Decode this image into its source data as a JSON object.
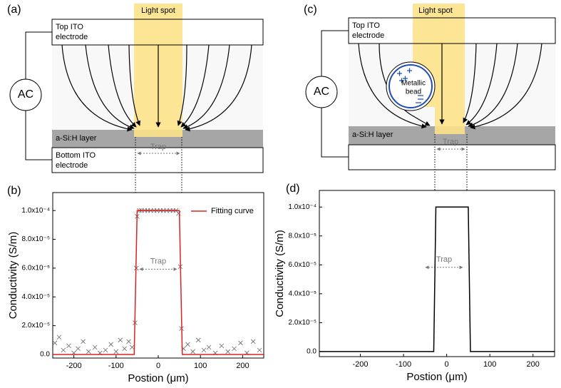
{
  "diagram_a": {
    "label": "(a)",
    "light_spot": "Light spot",
    "top_electrode": [
      "Top ITO",
      "electrode"
    ],
    "source": "AC",
    "layer": "a-Si:H layer",
    "trap": "Trap",
    "bottom_electrode": [
      "Bottom ITO",
      "electrode"
    ]
  },
  "diagram_c": {
    "label": "(c)",
    "light_spot": "Light spot",
    "top_electrode": [
      "Top ITO",
      "electrode"
    ],
    "source": "AC",
    "bead": [
      "Metallic",
      "bead"
    ],
    "layer": "a-Si:H layer",
    "trap": "Trap"
  },
  "chart_data": [
    {
      "type": "line",
      "panel_label": "(b)",
      "xlabel": "Postion (μm)",
      "ylabel": "Conductivity (S/m)",
      "annotation": "Trap",
      "xlim": [
        -250,
        250
      ],
      "ylim": [
        -2.5e-06,
        0.0001125
      ],
      "xticks": [
        -200,
        -100,
        0,
        100,
        200
      ],
      "yticks": [
        {
          "value": 0,
          "label": "0.0"
        },
        {
          "value": 2e-05,
          "label": "2.0x10⁻⁵"
        },
        {
          "value": 4e-05,
          "label": "4.0x10⁻⁵"
        },
        {
          "value": 6e-05,
          "label": "6.0x10⁻⁵"
        },
        {
          "value": 8e-05,
          "label": "8.0x10⁻⁵"
        },
        {
          "value": 0.0001,
          "label": "1.0x10⁻⁴"
        }
      ],
      "legend": "upper right",
      "series": [
        {
          "type": "scatter",
          "color": "#666666",
          "x": [
            -245,
            -235,
            -225,
            -212,
            -200,
            -190,
            -178,
            -165,
            -150,
            -138,
            -125,
            -112,
            -100,
            -90,
            -80,
            -70,
            -62,
            -55,
            -52,
            -50,
            -45,
            -40,
            -32,
            -25,
            -18,
            -10,
            -3,
            5,
            12,
            20,
            28,
            35,
            42,
            48,
            52,
            55,
            60,
            70,
            82,
            95,
            108,
            120,
            135,
            150,
            165,
            180,
            195,
            210,
            225,
            240
          ],
          "values": [
            8e-06,
            1.2e-05,
            3e-06,
            6e-06,
            1e-06,
            4e-06,
            9e-06,
            2e-06,
            5e-06,
            1e-06,
            3e-06,
            7e-06,
            2e-06,
            1e-05,
            4e-06,
            9e-06,
            5e-06,
            2.2e-05,
            6e-05,
            9.6e-05,
            0.0001,
            0.0001,
            0.0001,
            0.0001,
            0.0001,
            0.0001,
            0.0001,
            0.0001,
            0.0001,
            0.0001,
            0.0001,
            0.0001,
            0.0001,
            9.8e-05,
            6.1e-05,
            1.8e-05,
            4e-06,
            7e-06,
            2e-06,
            1e-05,
            3e-06,
            5e-06,
            1e-06,
            6e-06,
            2e-06,
            4e-06,
            8e-06,
            1e-06,
            9e-06,
            3e-06
          ]
        },
        {
          "type": "line",
          "name": "Fitting curve",
          "color": "#e02020",
          "x": [
            -250,
            -57,
            -50,
            50,
            57,
            250
          ],
          "values": [
            0,
            0,
            0.0001,
            0.0001,
            0,
            0
          ]
        }
      ]
    },
    {
      "type": "line",
      "panel_label": "(d)",
      "xlabel": "Postion (μm)",
      "ylabel": "Conductivity (S/m)",
      "annotation": "Trap",
      "xlim": [
        -295,
        250
      ],
      "ylim": [
        -3.5e-06,
        0.0001115
      ],
      "xticks": [
        -200,
        -100,
        0,
        100,
        200
      ],
      "yticks": [
        {
          "value": 0,
          "label": "0.0"
        },
        {
          "value": 2e-05,
          "label": "2.0x10⁻⁵"
        },
        {
          "value": 4e-05,
          "label": "4.0x10⁻⁵"
        },
        {
          "value": 6e-05,
          "label": "6.0x10⁻⁵"
        },
        {
          "value": 8e-05,
          "label": "8.0x10⁻⁵"
        },
        {
          "value": 0.0001,
          "label": "1.0x10⁻⁴"
        }
      ],
      "series": [
        {
          "type": "line",
          "color": "#000000",
          "x": [
            -295,
            -30,
            -25,
            50,
            55,
            250
          ],
          "values": [
            0,
            0,
            0.0001,
            0.0001,
            0,
            0
          ]
        }
      ]
    }
  ]
}
